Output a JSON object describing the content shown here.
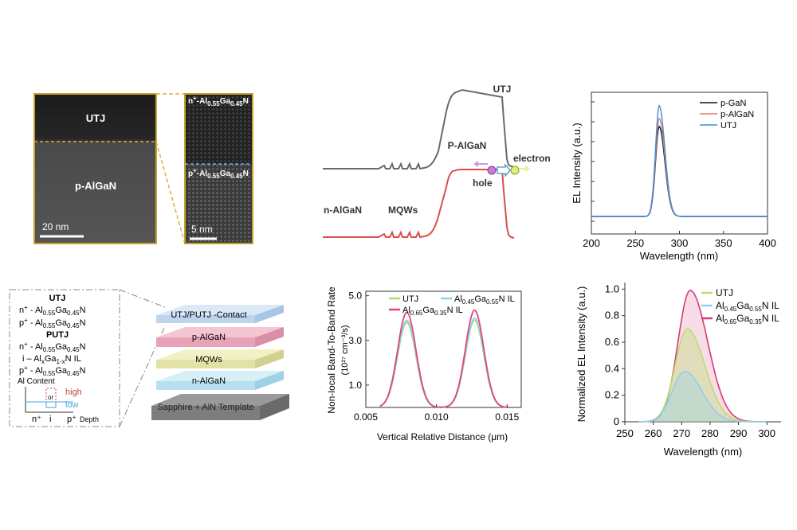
{
  "panels": {
    "tem": {
      "label_utj": "UTJ",
      "label_palgan": "p-AlGaN",
      "scale_left": "20 nm",
      "zoom_top_pre": "n",
      "zoom_top_sup": "+",
      "zoom_top_main": "-Al",
      "zoom_top_sub1": "0.55",
      "zoom_top_mid": "Ga",
      "zoom_top_sub2": "0.45",
      "zoom_top_end": "N",
      "zoom_bot_pre": "p",
      "zoom_bot_sup": "+",
      "zoom_bot_main": "-Al",
      "zoom_bot_sub1": "0.55",
      "zoom_bot_mid": "Ga",
      "zoom_bot_sub2": "0.45",
      "zoom_bot_end": "N",
      "scale_right": "5 nm"
    },
    "band": {
      "utj": "UTJ",
      "palgan": "P-AlGaN",
      "nalgan": "n-AlGaN",
      "mqws": "MQWs",
      "hole": "hole",
      "electron": "electron"
    },
    "schematic": {
      "utj_title": "UTJ",
      "utj_l1_pre": "n",
      "utj_l1_sup": "+",
      "utj_l1_a": " - Al",
      "utj_l1_s1": "0.55",
      "utj_l1_b": "Ga",
      "utj_l1_s2": "0.45",
      "utj_l1_c": "N",
      "utj_l2_pre": "p",
      "utj_l2_sup": "+",
      "utj_l2_a": " - Al",
      "utj_l2_s1": "0.55",
      "utj_l2_b": "Ga",
      "utj_l2_s2": "0.45",
      "utj_l2_c": "N",
      "putj_title": "PUTJ",
      "putj_l1_pre": "n",
      "putj_l1_sup": "+",
      "putj_l1_a": " - Al",
      "putj_l1_s1": "0.55",
      "putj_l1_b": "Ga",
      "putj_l1_s2": "0.45",
      "putj_l1_c": "N",
      "putj_l2_a": "i – Al",
      "putj_l2_s1": "x",
      "putj_l2_b": "Ga",
      "putj_l2_s2": "1-x",
      "putj_l2_c": "N IL",
      "putj_l3_pre": "p",
      "putj_l3_sup": "+",
      "putj_l3_a": " - Al",
      "putj_l3_s1": "0.55",
      "putj_l3_b": "Ga",
      "putj_l3_s2": "0.45",
      "putj_l3_c": "N",
      "al_content": "Al Content",
      "high": "high",
      "or": "or",
      "low": "low",
      "x_n": "n⁺",
      "x_i": "i",
      "x_p": "p⁺",
      "depth": "Depth",
      "layer_contact": "UTJ/PUTJ  -Contact",
      "layer_palgan": "p-AlGaN",
      "layer_mqws": "MQWs",
      "layer_nalgan": "n-AlGaN",
      "layer_template": "Sapphire +    AlN  Template",
      "colors": {
        "high": "#c8413f",
        "low": "#4aa6d8"
      }
    }
  },
  "chart_data": [
    {
      "type": "line",
      "title": "",
      "xlabel": "Wavelength (nm)",
      "ylabel": "EL Intensity (a.u.)",
      "xlim": [
        200,
        400
      ],
      "xticks": [
        "200",
        "250",
        "300",
        "350",
        "400"
      ],
      "legend": "top-right",
      "series": [
        {
          "name": "p-GaN",
          "color": "#111111",
          "peak": 0.78,
          "center": 277
        },
        {
          "name": "p-AlGaN",
          "color": "#e07a7a",
          "peak": 0.85,
          "center": 277
        },
        {
          "name": "UTJ",
          "color": "#3d8fd6",
          "peak": 0.96,
          "center": 277
        }
      ]
    },
    {
      "type": "line",
      "title": "",
      "xlabel": "Vertical Relative Distance (μm)",
      "ylabel_line1": "Non-local Band-To-Band Rate",
      "ylabel_line2": "(10²⁷ cm⁻³/s)",
      "xlim": [
        0.005,
        0.016
      ],
      "ylim": [
        0,
        5.2
      ],
      "xticks": [
        "0.005",
        "0.010",
        "0.015"
      ],
      "yticks": [
        "1.0",
        "3.0",
        "5.0"
      ],
      "legend": "top",
      "series": [
        {
          "name": "UTJ",
          "color": "#a6e25a",
          "peaks": [
            [
              0.0079,
              3.8
            ],
            [
              0.0127,
              3.9
            ]
          ]
        },
        {
          "name": "Al0.45Ga0.55N IL",
          "color": "#8fd0ee",
          "peaks": [
            [
              0.0079,
              3.9
            ],
            [
              0.0127,
              4.0
            ]
          ]
        },
        {
          "name": "Al0.65Ga0.35N IL",
          "color": "#e0457e",
          "peaks": [
            [
              0.0079,
              4.25
            ],
            [
              0.0127,
              4.35
            ]
          ]
        }
      ],
      "legend_labels": {
        "utj": "UTJ",
        "l2_a": "Al",
        "l2_s1": "0.45",
        "l2_b": "Ga",
        "l2_s2": "0.55",
        "l2_c": "N IL",
        "l3_a": "Al",
        "l3_s1": "0.65",
        "l3_b": "Ga",
        "l3_s2": "0.35",
        "l3_c": "N IL"
      }
    },
    {
      "type": "area",
      "title": "",
      "xlabel": "Wavelength (nm)",
      "ylabel": "Normalized EL Intensity (a.u.)",
      "xlim": [
        250,
        305
      ],
      "ylim": [
        0,
        1.05
      ],
      "xticks": [
        "250",
        "260",
        "270",
        "280",
        "290",
        "300"
      ],
      "yticks": [
        "0",
        "0.2",
        "0.4",
        "0.6",
        "0.8",
        "1.0"
      ],
      "legend": "top-right",
      "series": [
        {
          "name": "UTJ",
          "color": "#b8e06b",
          "peak": 0.7,
          "center": 272
        },
        {
          "name": "Al0.45Ga0.55N IL",
          "color": "#8fd0ee",
          "peak": 0.38,
          "center": 271
        },
        {
          "name": "Al0.65Ga0.35N IL",
          "color": "#d63b78",
          "peak": 0.99,
          "center": 273
        }
      ],
      "legend_labels": {
        "utj": "UTJ",
        "l2_a": "Al",
        "l2_s1": "0.45",
        "l2_b": "Ga",
        "l2_s2": "0.55",
        "l2_c": "N IL",
        "l3_a": "Al",
        "l3_s1": "0.65",
        "l3_b": "Ga",
        "l3_s2": "0.35",
        "l3_c": "N IL"
      }
    }
  ]
}
